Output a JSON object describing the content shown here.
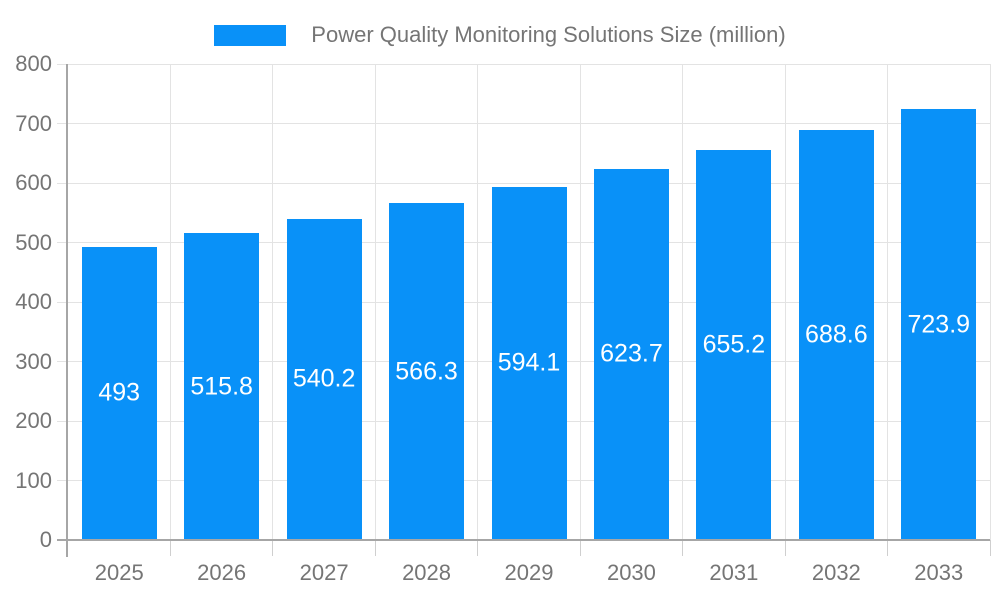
{
  "chart_data": {
    "type": "bar",
    "title": "Power Quality Monitoring Solutions Size (million)",
    "categories": [
      "2025",
      "2026",
      "2027",
      "2028",
      "2029",
      "2030",
      "2031",
      "2032",
      "2033"
    ],
    "values": [
      493,
      515.8,
      540.2,
      566.3,
      594.1,
      623.7,
      655.2,
      688.6,
      723.9
    ],
    "xlabel": "",
    "ylabel": "",
    "ylim": [
      0,
      800
    ],
    "ytick_interval": 100,
    "ytick_labels": [
      "0",
      "100",
      "200",
      "300",
      "400",
      "500",
      "600",
      "700",
      "800"
    ],
    "grid": true,
    "legend_position": "top-center",
    "bar_label_position": "inside-center",
    "colors": {
      "bar": "#0991f8",
      "axis_line": "#a6a6a6",
      "gridline": "#e3e3e3",
      "tick": "#cfcfcf",
      "axis_text": "#757575",
      "value_text": "#ffffff",
      "background": "#ffffff"
    }
  }
}
